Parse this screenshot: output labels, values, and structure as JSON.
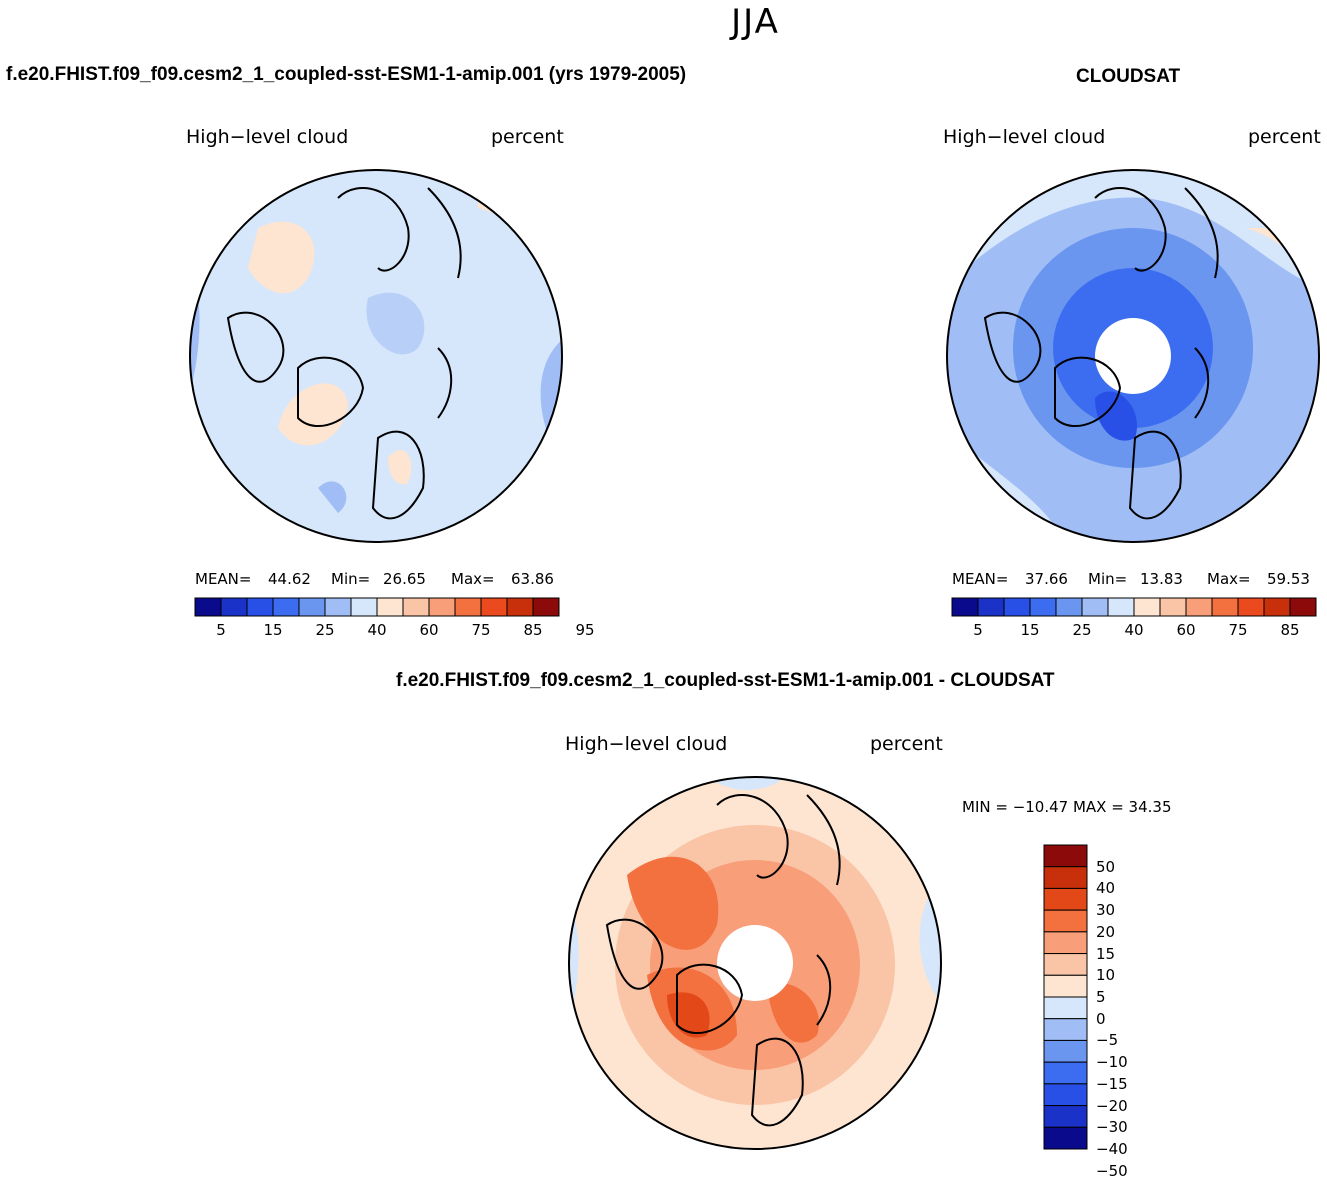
{
  "season": "JJA",
  "panels": [
    {
      "id": "model",
      "title": "f.e20.FHIST.f09_f09.cesm2_1_coupled-sst-ESM1-1-amip.001 (yrs 1979-2005)",
      "variable": "High−level cloud",
      "units": "percent",
      "mean_label": "MEAN=",
      "mean": "44.62",
      "min_label": "Min=",
      "min": "26.65",
      "max_label": "Max=",
      "max": "63.86"
    },
    {
      "id": "obs",
      "title": "CLOUDSAT",
      "variable": "High−level cloud",
      "units": "percent",
      "mean_label": "MEAN=",
      "mean": "37.66",
      "min_label": "Min=",
      "min": "13.83",
      "max_label": "Max=",
      "max": "59.53"
    }
  ],
  "abs_colorbar": {
    "colors": [
      "#0a0a8c",
      "#1a32c8",
      "#2850e6",
      "#3c6cf0",
      "#6a96f0",
      "#a0bef5",
      "#d6e6fb",
      "#fde5d2",
      "#fac4a6",
      "#f89e78",
      "#f3703f",
      "#ea4a1e",
      "#c8300c",
      "#8c0a0a"
    ],
    "tick_labels": [
      "5",
      "15",
      "25",
      "40",
      "60",
      "75",
      "85",
      "95"
    ]
  },
  "diff_panel": {
    "title": "f.e20.FHIST.f09_f09.cesm2_1_coupled-sst-ESM1-1-amip.001 - CLOUDSAT",
    "variable": "High−level cloud",
    "units": "percent",
    "minmax_text": "MIN = −10.47 MAX =   34.35"
  },
  "diff_colorbar": {
    "colors": [
      "#8c0a0a",
      "#c8300c",
      "#e24818",
      "#f3703f",
      "#f89e78",
      "#fac4a6",
      "#fde5d2",
      "#d6e6fb",
      "#a0bef5",
      "#6a96f0",
      "#3c6cf0",
      "#2850e6",
      "#1a32c8",
      "#0a0a8c"
    ],
    "tick_labels": [
      "50",
      "40",
      "30",
      "20",
      "15",
      "10",
      "5",
      "0",
      "−5",
      "−10",
      "−15",
      "−20",
      "−30",
      "−40",
      "−50"
    ]
  }
}
